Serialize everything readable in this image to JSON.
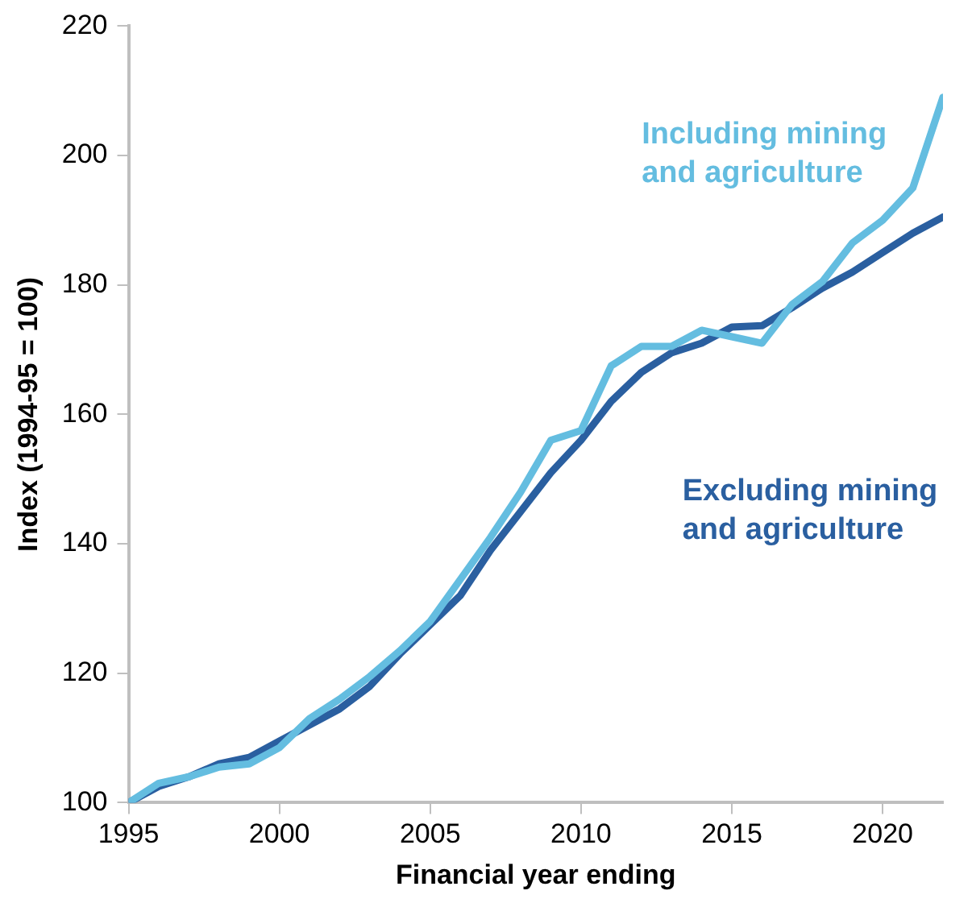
{
  "chart_data": {
    "type": "line",
    "xlabel": "Financial year ending",
    "ylabel": "Index (1994-95 = 100)",
    "x": [
      1995,
      1996,
      1997,
      1998,
      1999,
      2000,
      2001,
      2002,
      2003,
      2004,
      2005,
      2006,
      2007,
      2008,
      2009,
      2010,
      2011,
      2012,
      2013,
      2014,
      2015,
      2016,
      2017,
      2018,
      2019,
      2020,
      2021,
      2022
    ],
    "series": [
      {
        "name": "Including mining and agriculture",
        "color": "#64bde0",
        "values": [
          100,
          103,
          104,
          105.5,
          106,
          108.5,
          113,
          116,
          119.5,
          123.5,
          128,
          134.5,
          141,
          148,
          156,
          157.5,
          167.5,
          170.5,
          170.5,
          173,
          172,
          171,
          177,
          180.5,
          186.5,
          190,
          195,
          209
        ]
      },
      {
        "name": "Excluding mining and agriculture",
        "color": "#2a5fa0",
        "values": [
          100,
          102.5,
          104,
          106,
          107,
          109.5,
          112,
          114.5,
          118,
          123,
          127.5,
          132,
          139,
          145,
          151,
          156,
          162,
          166.5,
          169.5,
          171,
          173.5,
          173.7,
          176.5,
          179.5,
          182,
          185,
          188,
          190.5
        ]
      }
    ],
    "xlim": [
      1995,
      2022
    ],
    "xticks": [
      1995,
      2000,
      2005,
      2010,
      2015,
      2020
    ],
    "ylim": [
      100,
      220
    ],
    "yticks": [
      100,
      120,
      140,
      160,
      180,
      200,
      220
    ],
    "grid": false,
    "legend": false,
    "marker": "none",
    "line_style": "solid"
  }
}
